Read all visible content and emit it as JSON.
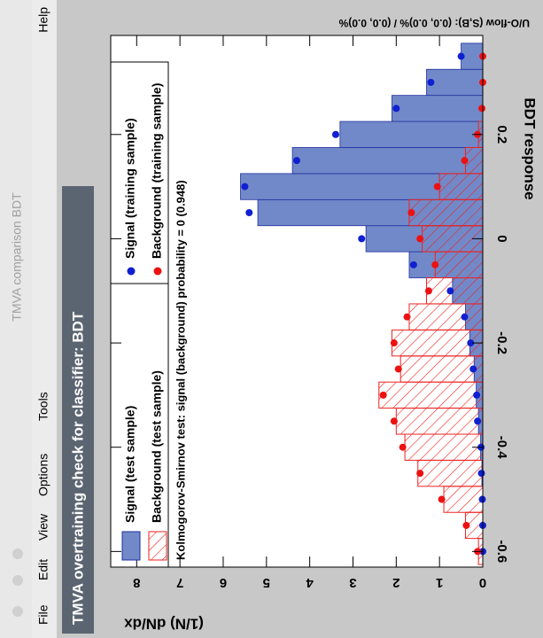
{
  "window_title": "TMVA comparison BDT",
  "menu": [
    "File",
    "Edit",
    "View",
    "Options",
    "Tools",
    "Help"
  ],
  "chart_data": {
    "type": "histogram",
    "title": "TMVA overtraining check for classifier: BDT",
    "x_label": "BDT response",
    "y_label": "(1/N) dN/dx",
    "annotation": "Kolmogorov-Smirnov test: signal (background) probability =    0 (0.948)",
    "overflow": "U/O-flow (S,B): (0.0, 0.0)% / (0.0, 0.0)%",
    "xlim": [
      -0.63,
      0.39
    ],
    "ylim": [
      0,
      8.6
    ],
    "xticks": [
      -0.6,
      -0.4,
      -0.2,
      0,
      0.2
    ],
    "yticks": [
      0,
      1,
      2,
      3,
      4,
      5,
      6,
      7,
      8
    ],
    "bins": [
      -0.625,
      -0.575,
      -0.525,
      -0.475,
      -0.425,
      -0.375,
      -0.325,
      -0.275,
      -0.225,
      -0.175,
      -0.125,
      -0.075,
      -0.025,
      0.025,
      0.075,
      0.125,
      0.175,
      0.225,
      0.275,
      0.325,
      0.375
    ],
    "series": [
      {
        "name": "Signal (test sample)",
        "style": "filled",
        "color": "#7189c8",
        "values": [
          0,
          0,
          0,
          0.02,
          0.05,
          0.1,
          0.15,
          0.2,
          0.3,
          0.4,
          0.7,
          1.7,
          2.7,
          5.2,
          5.6,
          4.4,
          3.3,
          2.1,
          1.3,
          0.5
        ]
      },
      {
        "name": "Background (test sample)",
        "style": "hatched",
        "color": "#ee2222",
        "values": [
          0.1,
          0.4,
          0.9,
          1.5,
          1.8,
          2.0,
          2.4,
          1.9,
          2.1,
          1.7,
          1.3,
          1.1,
          1.4,
          1.7,
          1.0,
          0.4,
          0.1,
          0,
          0,
          0
        ]
      },
      {
        "name": "Signal (training sample)",
        "style": "points",
        "color": "#1020d0",
        "values": [
          0,
          0,
          0.01,
          0.03,
          0.04,
          0.12,
          0.14,
          0.22,
          0.28,
          0.42,
          0.75,
          1.6,
          2.8,
          5.4,
          5.5,
          4.3,
          3.4,
          2.0,
          1.2,
          0.5
        ]
      },
      {
        "name": "Background (training sample)",
        "style": "points",
        "color": "#ee1111",
        "values": [
          0.12,
          0.38,
          0.95,
          1.45,
          1.85,
          2.05,
          2.3,
          1.95,
          2.05,
          1.75,
          1.25,
          1.1,
          1.45,
          1.65,
          1.05,
          0.42,
          0.12,
          0.02,
          0,
          0
        ]
      }
    ]
  }
}
